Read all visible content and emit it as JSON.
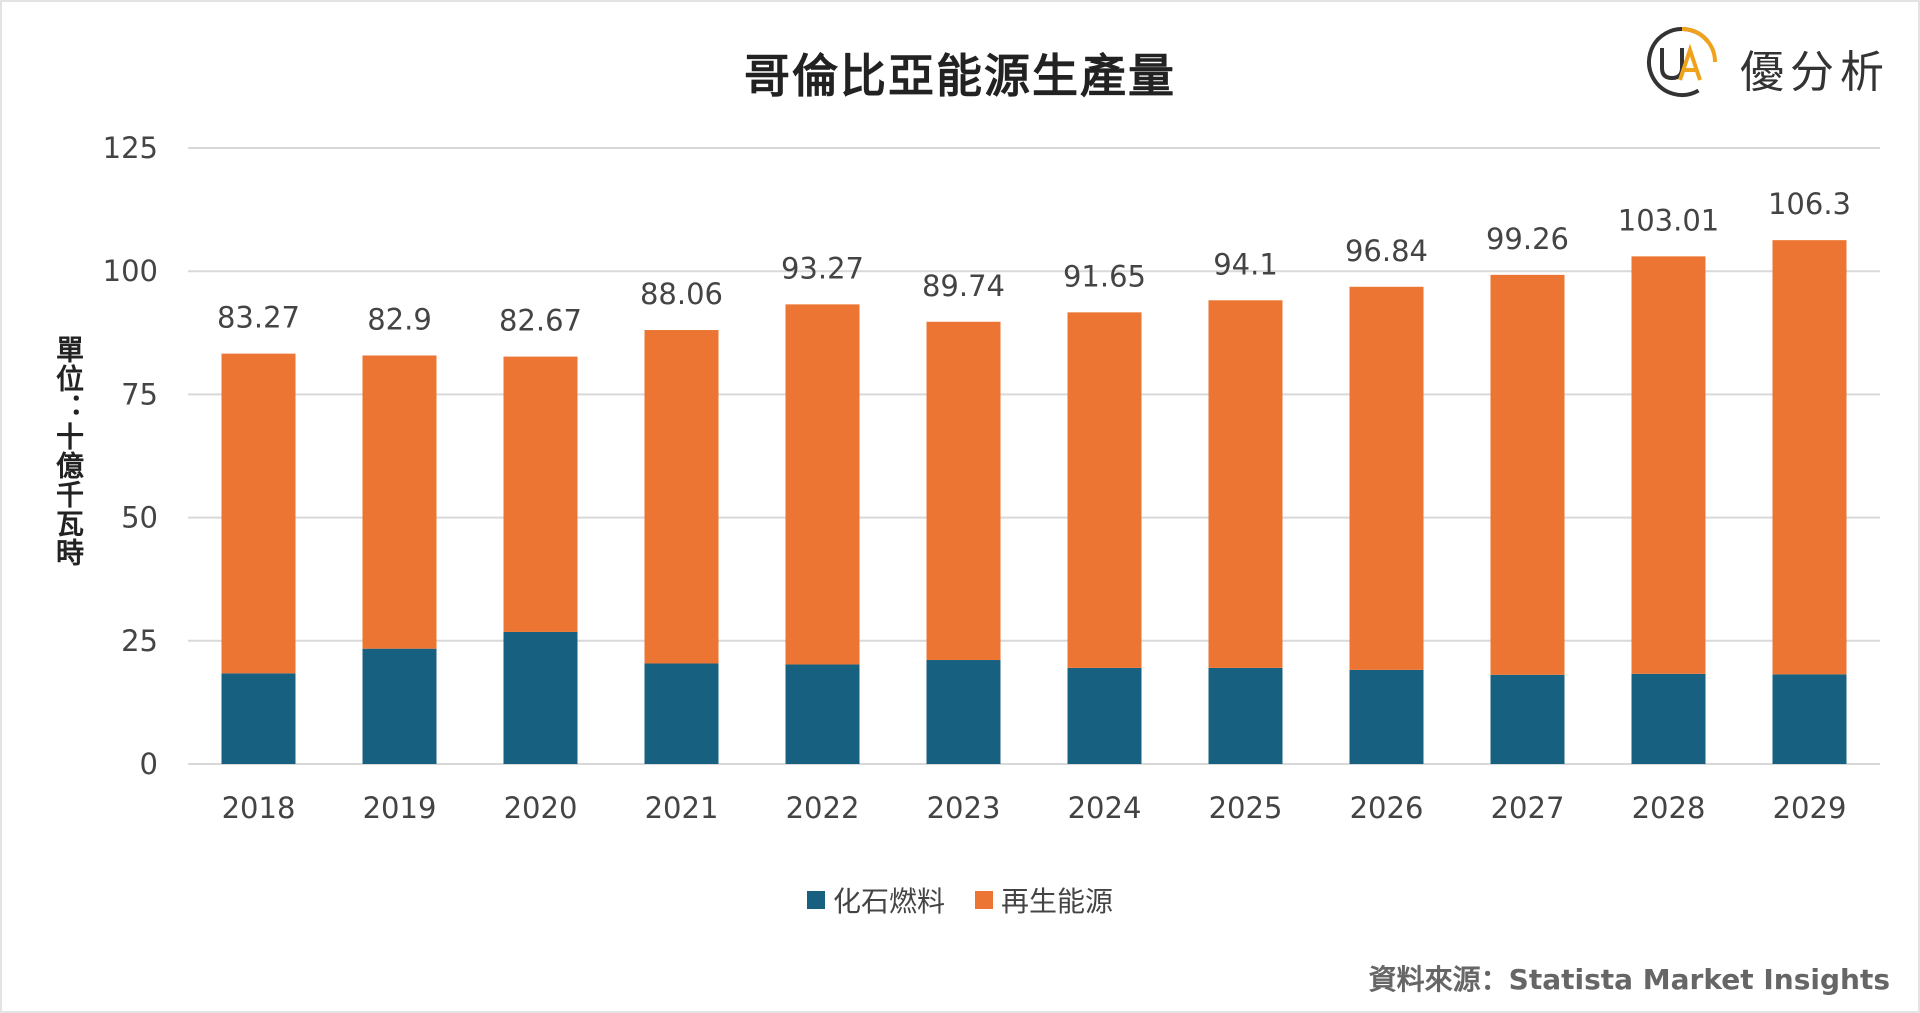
{
  "header": {
    "title": "哥倫比亞能源生產量",
    "logo_text": "優分析",
    "logo_mark": "UA"
  },
  "footer": {
    "source": "資料來源：Statista Market Insights"
  },
  "colors": {
    "fossil": "#17607f",
    "renewable": "#ec7533",
    "grid": "#d9d9d9",
    "logo_orange": "#f0a21c",
    "logo_dark": "#333333"
  },
  "chart_data": {
    "type": "bar",
    "stacked": true,
    "title": "哥倫比亞能源生產量",
    "ylabel": "單位：十億千瓦時",
    "xlabel": "",
    "ylim": [
      0,
      125
    ],
    "yticks": [
      0,
      25,
      50,
      75,
      100,
      125
    ],
    "grid": true,
    "legend_position": "bottom",
    "categories": [
      "2018",
      "2019",
      "2020",
      "2021",
      "2022",
      "2023",
      "2024",
      "2025",
      "2026",
      "2027",
      "2028",
      "2029"
    ],
    "series": [
      {
        "name": "化石燃料",
        "values": [
          18.4,
          23.4,
          26.8,
          20.4,
          20.2,
          21.1,
          19.5,
          19.5,
          19.1,
          18.1,
          18.3,
          18.2
        ]
      },
      {
        "name": "再生能源",
        "values": [
          64.87,
          59.5,
          55.87,
          67.66,
          73.07,
          68.64,
          72.15,
          74.6,
          77.74,
          81.16,
          84.71,
          88.1
        ]
      }
    ],
    "totals": [
      "83.27",
      "82.9",
      "82.67",
      "88.06",
      "93.27",
      "89.74",
      "91.65",
      "94.1",
      "96.84",
      "99.26",
      "103.01",
      "106.3"
    ]
  }
}
